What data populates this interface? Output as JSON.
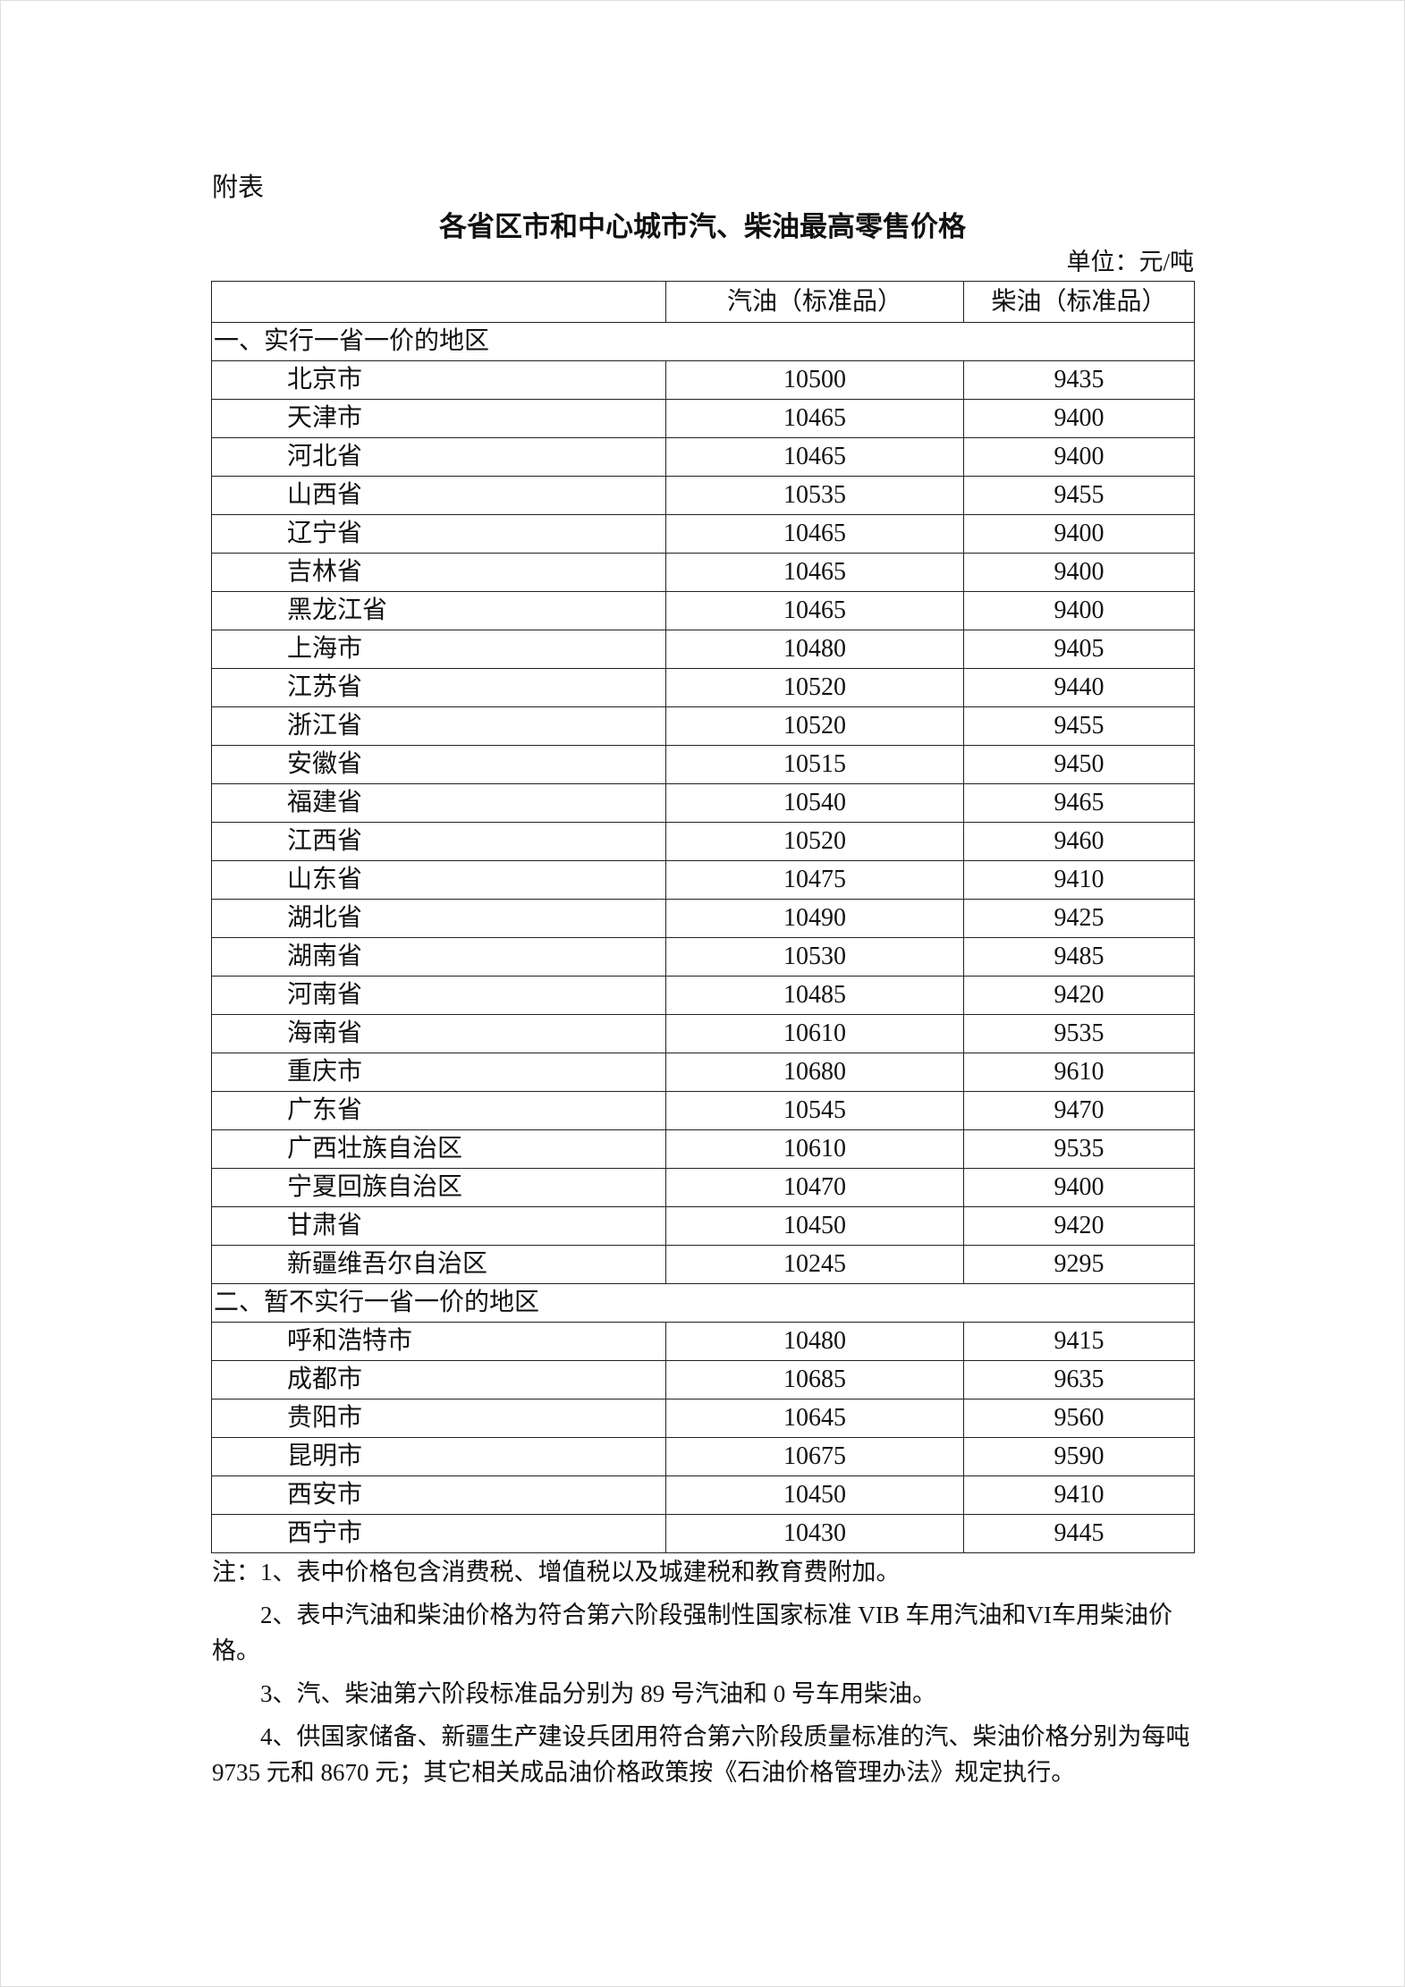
{
  "label": "附表",
  "title": "各省区市和中心城市汽、柴油最高零售价格",
  "unit": "单位：元/吨",
  "table": {
    "headers": [
      "",
      "汽油（标准品）",
      "柴油（标准品）"
    ],
    "sections": [
      {
        "title": "一、实行一省一价的地区",
        "rows": [
          [
            "北京市",
            "10500",
            "9435"
          ],
          [
            "天津市",
            "10465",
            "9400"
          ],
          [
            "河北省",
            "10465",
            "9400"
          ],
          [
            "山西省",
            "10535",
            "9455"
          ],
          [
            "辽宁省",
            "10465",
            "9400"
          ],
          [
            "吉林省",
            "10465",
            "9400"
          ],
          [
            "黑龙江省",
            "10465",
            "9400"
          ],
          [
            "上海市",
            "10480",
            "9405"
          ],
          [
            "江苏省",
            "10520",
            "9440"
          ],
          [
            "浙江省",
            "10520",
            "9455"
          ],
          [
            "安徽省",
            "10515",
            "9450"
          ],
          [
            "福建省",
            "10540",
            "9465"
          ],
          [
            "江西省",
            "10520",
            "9460"
          ],
          [
            "山东省",
            "10475",
            "9410"
          ],
          [
            "湖北省",
            "10490",
            "9425"
          ],
          [
            "湖南省",
            "10530",
            "9485"
          ],
          [
            "河南省",
            "10485",
            "9420"
          ],
          [
            "海南省",
            "10610",
            "9535"
          ],
          [
            "重庆市",
            "10680",
            "9610"
          ],
          [
            "广东省",
            "10545",
            "9470"
          ],
          [
            "广西壮族自治区",
            "10610",
            "9535"
          ],
          [
            "宁夏回族自治区",
            "10470",
            "9400"
          ],
          [
            "甘肃省",
            "10450",
            "9420"
          ],
          [
            "新疆维吾尔自治区",
            "10245",
            "9295"
          ]
        ]
      },
      {
        "title": "二、暂不实行一省一价的地区",
        "rows": [
          [
            "呼和浩特市",
            "10480",
            "9415"
          ],
          [
            "成都市",
            "10685",
            "9635"
          ],
          [
            "贵阳市",
            "10645",
            "9560"
          ],
          [
            "昆明市",
            "10675",
            "9590"
          ],
          [
            "西安市",
            "10450",
            "9410"
          ],
          [
            "西宁市",
            "10430",
            "9445"
          ]
        ]
      }
    ]
  },
  "notes": [
    "注：1、表中价格包含消费税、增值税以及城建税和教育费附加。",
    "2、表中汽油和柴油价格为符合第六阶段强制性国家标准 VIB 车用汽油和VI车用柴油价格。",
    "3、汽、柴油第六阶段标准品分别为 89 号汽油和 0 号车用柴油。",
    "4、供国家储备、新疆生产建设兵团用符合第六阶段质量标准的汽、柴油价格分别为每吨 9735 元和 8670 元；其它相关成品油价格政策按《石油价格管理办法》规定执行。"
  ]
}
